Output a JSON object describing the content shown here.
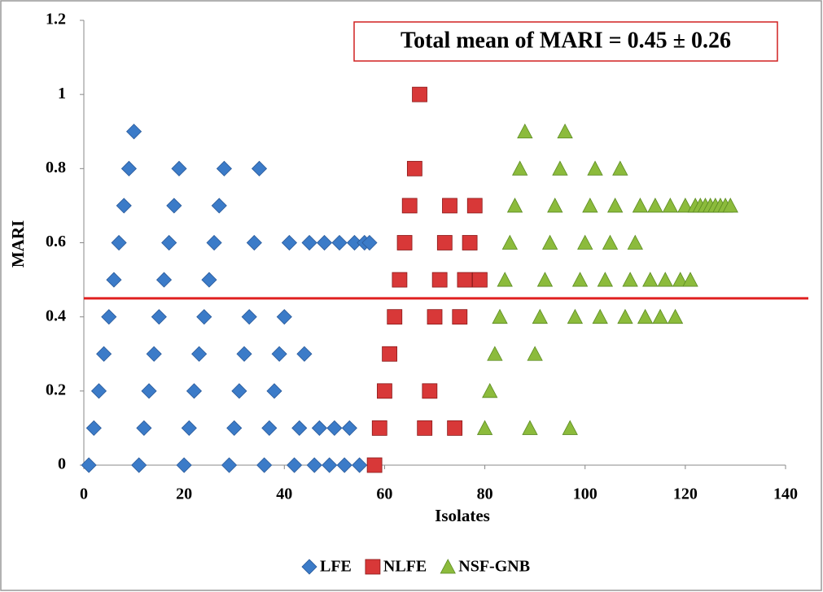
{
  "chart_data": {
    "type": "scatter",
    "annotation": "Total mean of MARI = 0.45 ± 0.26",
    "reference_line": 0.45,
    "reference_color": "#e02020",
    "xlabel": "Isolates",
    "ylabel": "MARI",
    "xlim": [
      0,
      140
    ],
    "ylim": [
      0,
      1.2
    ],
    "xticks": [
      0,
      20,
      40,
      60,
      80,
      100,
      120,
      140
    ],
    "yticks": [
      0,
      0.2,
      0.4,
      0.6,
      0.8,
      1,
      1.2
    ],
    "legend": "bottom",
    "series": [
      {
        "name": "LFE",
        "color": "#3b7bc8",
        "marker": "diamond",
        "x": [
          1,
          2,
          3,
          4,
          5,
          6,
          7,
          8,
          9,
          10,
          11,
          12,
          13,
          14,
          15,
          16,
          17,
          18,
          19,
          20,
          21,
          22,
          23,
          24,
          25,
          26,
          27,
          28,
          29,
          30,
          31,
          32,
          33,
          34,
          35,
          36,
          37,
          38,
          39,
          40,
          41,
          42,
          43,
          44,
          45,
          46,
          47,
          48,
          49,
          50,
          51,
          52,
          53,
          54,
          55,
          56,
          57
        ],
        "values": [
          0,
          0.1,
          0.2,
          0.3,
          0.4,
          0.5,
          0.6,
          0.7,
          0.8,
          0.9,
          0,
          0.1,
          0.2,
          0.3,
          0.4,
          0.5,
          0.6,
          0.7,
          0.8,
          0,
          0.1,
          0.2,
          0.3,
          0.4,
          0.5,
          0.6,
          0.7,
          0.8,
          0,
          0.1,
          0.2,
          0.3,
          0.4,
          0.6,
          0.8,
          0,
          0.1,
          0.2,
          0.3,
          0.4,
          0.6,
          0,
          0.1,
          0.3,
          0.6,
          0,
          0.1,
          0.6,
          0,
          0.1,
          0.6,
          0,
          0.1,
          0.6,
          0,
          0.6,
          0.6
        ]
      },
      {
        "name": "NLFE",
        "color": "#d83838",
        "marker": "square",
        "x": [
          58,
          59,
          60,
          61,
          62,
          63,
          64,
          65,
          66,
          67,
          68,
          69,
          70,
          71,
          72,
          73,
          74,
          75,
          76,
          77,
          78,
          79
        ],
        "values": [
          0,
          0.1,
          0.2,
          0.3,
          0.4,
          0.5,
          0.6,
          0.7,
          0.8,
          1,
          0.1,
          0.2,
          0.4,
          0.5,
          0.6,
          0.7,
          0.1,
          0.4,
          0.5,
          0.6,
          0.7,
          0.5
        ]
      },
      {
        "name": "NSF-GNB",
        "color": "#8cbb3c",
        "marker": "triangle",
        "x": [
          80,
          81,
          82,
          83,
          84,
          85,
          86,
          87,
          88,
          89,
          90,
          91,
          92,
          93,
          94,
          95,
          96,
          97,
          98,
          99,
          100,
          101,
          102,
          103,
          104,
          105,
          106,
          107,
          108,
          109,
          110,
          111,
          112,
          113,
          114,
          115,
          116,
          117,
          118,
          119,
          120,
          121,
          122,
          123,
          124,
          125,
          126,
          127,
          128,
          129
        ],
        "values": [
          0.1,
          0.2,
          0.3,
          0.4,
          0.5,
          0.6,
          0.7,
          0.8,
          0.9,
          0.1,
          0.3,
          0.4,
          0.5,
          0.6,
          0.7,
          0.8,
          0.9,
          0.1,
          0.4,
          0.5,
          0.6,
          0.7,
          0.8,
          0.4,
          0.5,
          0.6,
          0.7,
          0.8,
          0.4,
          0.5,
          0.6,
          0.7,
          0.4,
          0.5,
          0.7,
          0.4,
          0.5,
          0.7,
          0.4,
          0.5,
          0.7,
          0.5,
          0.7,
          0.7,
          0.7,
          0.7,
          0.7,
          0.7,
          0.7,
          0.7
        ]
      }
    ]
  }
}
